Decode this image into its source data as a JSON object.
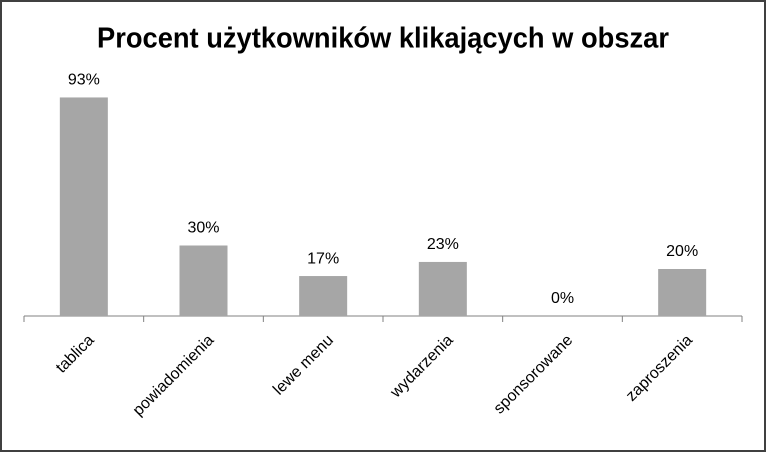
{
  "chart_data": {
    "type": "bar",
    "title": "Procent użytkowników klikających w obszar",
    "categories": [
      "tablica",
      "powiadomienia",
      "lewe menu",
      "wydarzenia",
      "sponsorowane",
      "zaproszenia"
    ],
    "values": [
      93,
      30,
      17,
      23,
      0,
      20
    ],
    "value_labels": [
      "93%",
      "30%",
      "17%",
      "23%",
      "0%",
      "20%"
    ],
    "color": "#a6a6a6",
    "ylim": [
      0,
      100
    ]
  }
}
